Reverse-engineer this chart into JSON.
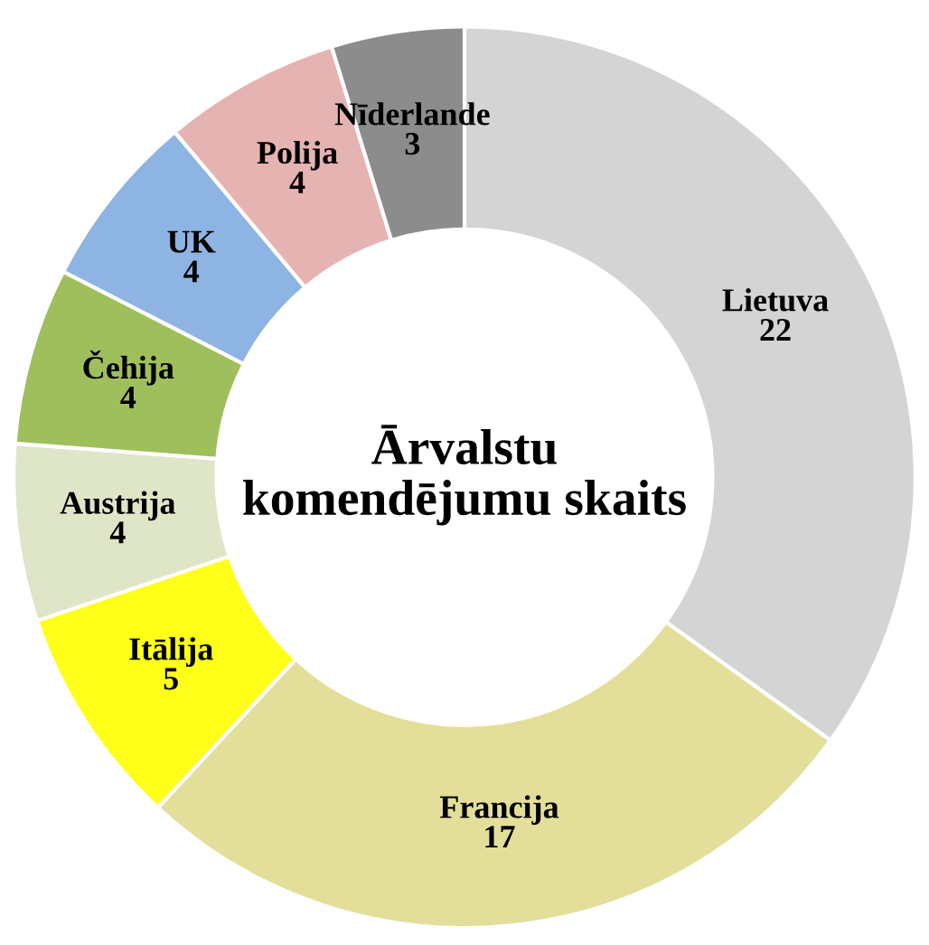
{
  "chart_data": {
    "type": "donut",
    "title": "Ārvalstu komendējumu skaits",
    "categories": [
      "Lietuva",
      "Francija",
      "Itālija",
      "Austrija",
      "Čehija",
      "UK",
      "Polija",
      "Nīderlande"
    ],
    "values": [
      22,
      17,
      5,
      4,
      4,
      4,
      4,
      3
    ],
    "colors": [
      "#d4d4d4",
      "#e3df9a",
      "#ffff1a",
      "#dfe6c8",
      "#9fbf5c",
      "#8db4e2",
      "#e6b3b3",
      "#8c8c8c"
    ],
    "data_labels": true,
    "legend": false
  }
}
